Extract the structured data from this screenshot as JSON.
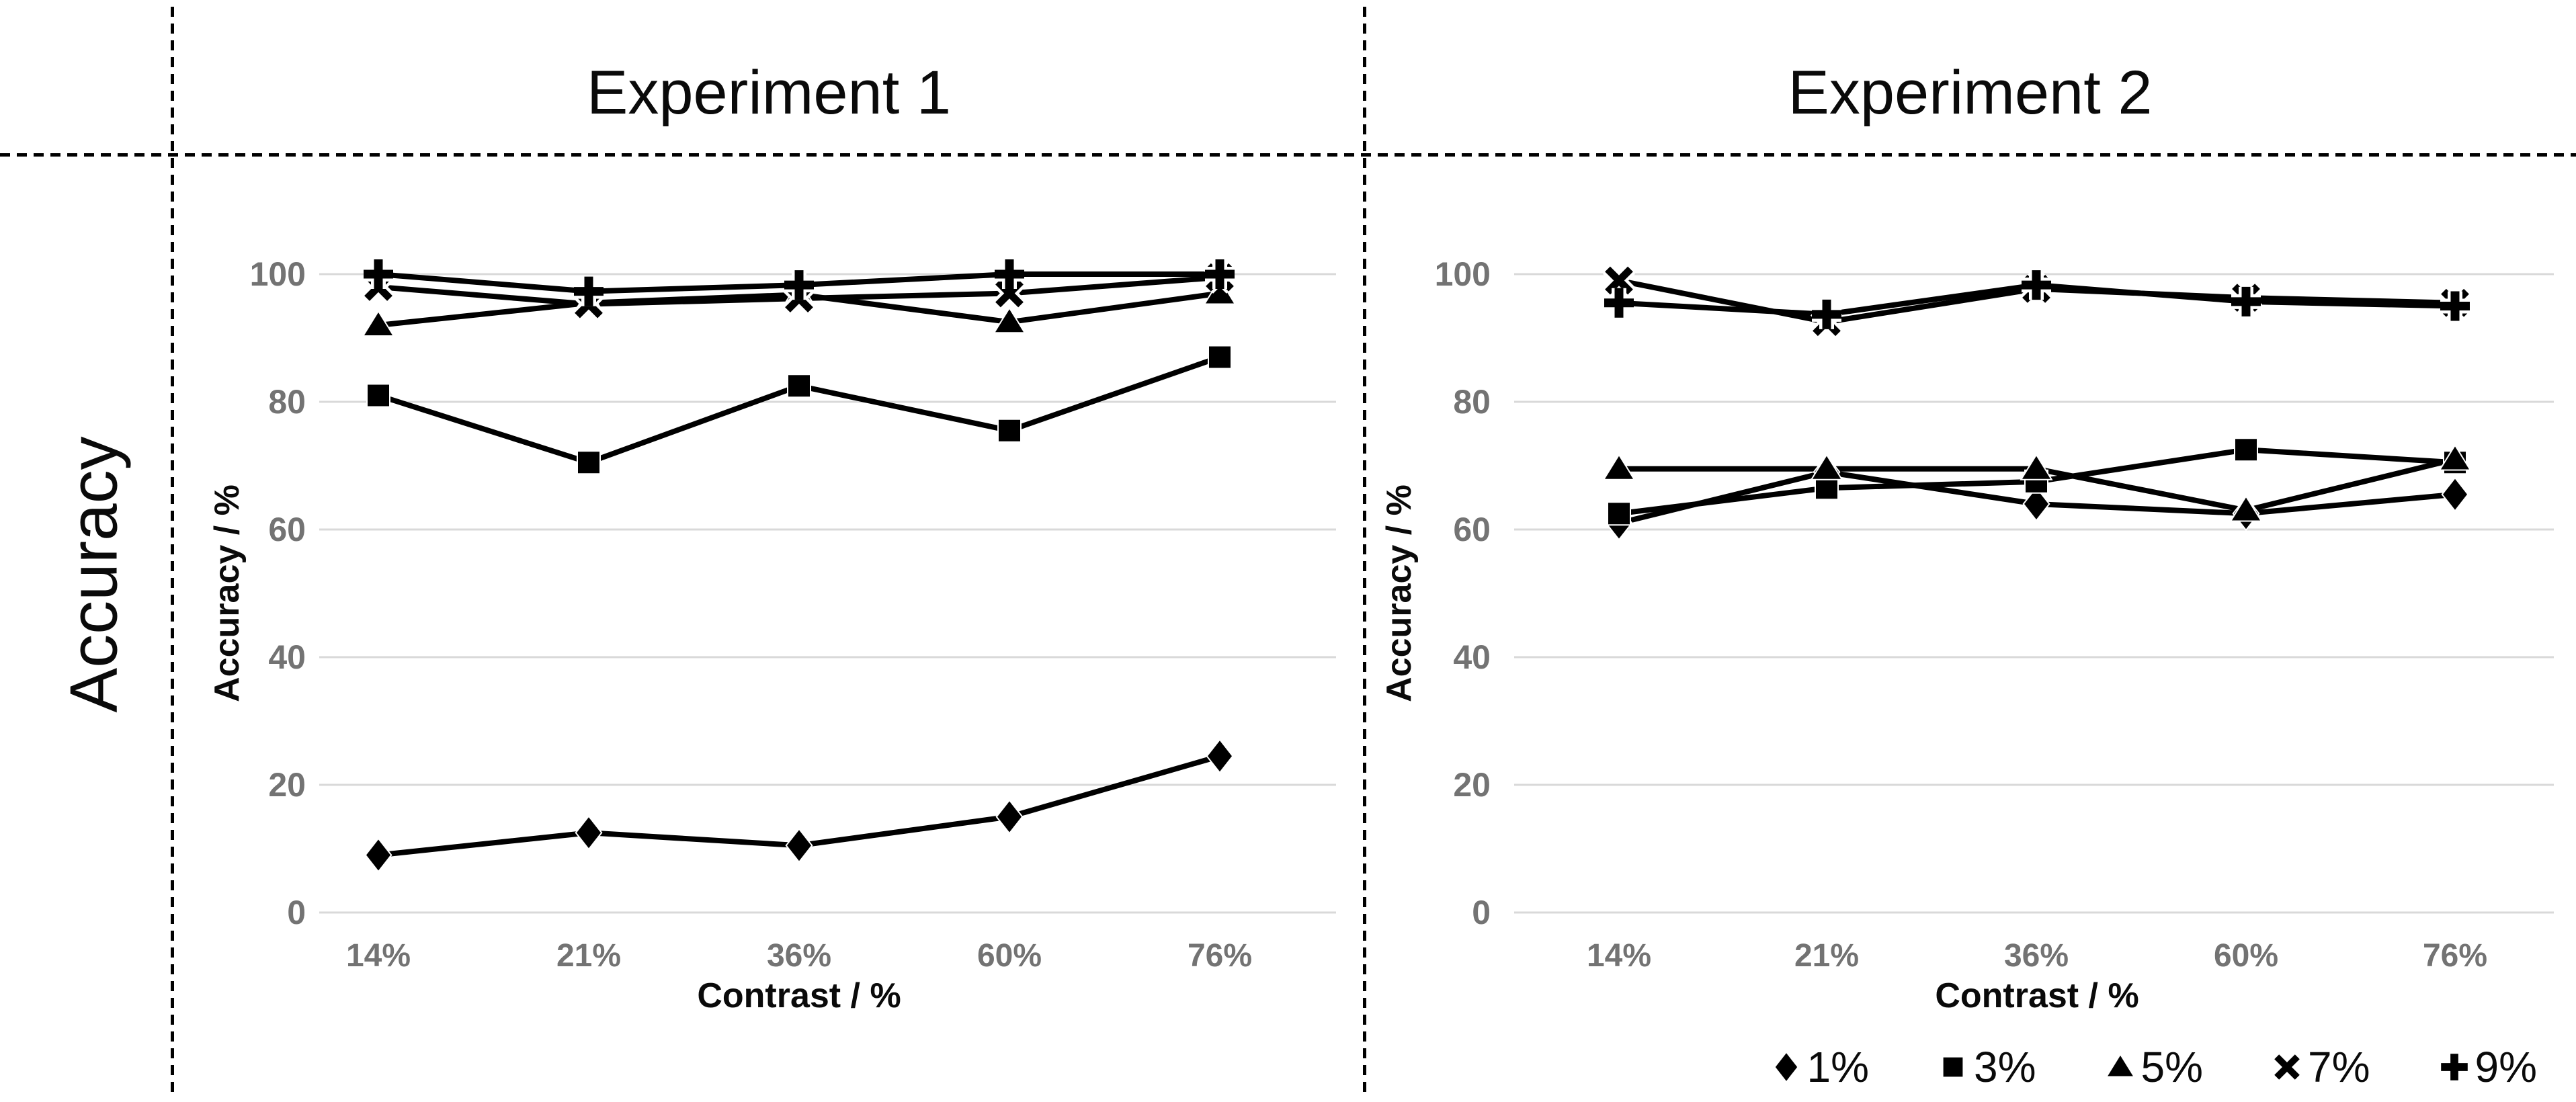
{
  "outer_y_label": "Accuracy",
  "chart_data": [
    {
      "type": "line",
      "title": "Experiment 1",
      "xlabel": "Contrast / %",
      "ylabel": "Accuracy / %",
      "categories": [
        "14%",
        "21%",
        "36%",
        "60%",
        "76%"
      ],
      "yticks": [
        0,
        20,
        40,
        60,
        80,
        100
      ],
      "ylim": [
        0,
        100
      ],
      "grid": true,
      "series_color": "#000000",
      "series": [
        {
          "name": "1%",
          "marker": "diamond",
          "values": [
            9,
            12.5,
            10.5,
            15,
            24.5
          ]
        },
        {
          "name": "3%",
          "marker": "square",
          "values": [
            81,
            70.5,
            82.5,
            75.5,
            87
          ]
        },
        {
          "name": "5%",
          "marker": "triangle",
          "values": [
            92,
            95.5,
            96.8,
            92.5,
            97
          ]
        },
        {
          "name": "7%",
          "marker": "x",
          "values": [
            98,
            95.3,
            96.2,
            97,
            99.5
          ]
        },
        {
          "name": "9%",
          "marker": "plus",
          "values": [
            100,
            97.3,
            98.3,
            100,
            100
          ]
        }
      ]
    },
    {
      "type": "line",
      "title": "Experiment 2",
      "xlabel": "Contrast / %",
      "ylabel": "Accuracy / %",
      "categories": [
        "14%",
        "21%",
        "36%",
        "60%",
        "76%"
      ],
      "yticks": [
        0,
        20,
        40,
        60,
        80,
        100
      ],
      "ylim": [
        0,
        100
      ],
      "grid": true,
      "series_color": "#000000",
      "series": [
        {
          "name": "1%",
          "marker": "diamond",
          "values": [
            61,
            69,
            64,
            62.5,
            65.5
          ]
        },
        {
          "name": "3%",
          "marker": "square",
          "values": [
            62.5,
            66.5,
            67.5,
            72.5,
            70.5
          ]
        },
        {
          "name": "5%",
          "marker": "triangle",
          "values": [
            69.5,
            69.5,
            69.5,
            63,
            71
          ]
        },
        {
          "name": "7%",
          "marker": "x",
          "values": [
            99,
            92.5,
            97.7,
            96.3,
            95.5
          ]
        },
        {
          "name": "9%",
          "marker": "plus",
          "values": [
            95.5,
            93.7,
            98.3,
            95.7,
            95
          ]
        }
      ]
    }
  ],
  "legend": {
    "entries": [
      {
        "marker": "diamond",
        "label": "1%"
      },
      {
        "marker": "square",
        "label": "3%"
      },
      {
        "marker": "triangle",
        "label": "5%"
      },
      {
        "marker": "x",
        "label": "7%"
      },
      {
        "marker": "plus",
        "label": "9%"
      }
    ]
  },
  "colors": {
    "series": "#000000",
    "gridline": "#d9d9d9",
    "tick_label": "#737373",
    "text": "#0a0a0a"
  }
}
